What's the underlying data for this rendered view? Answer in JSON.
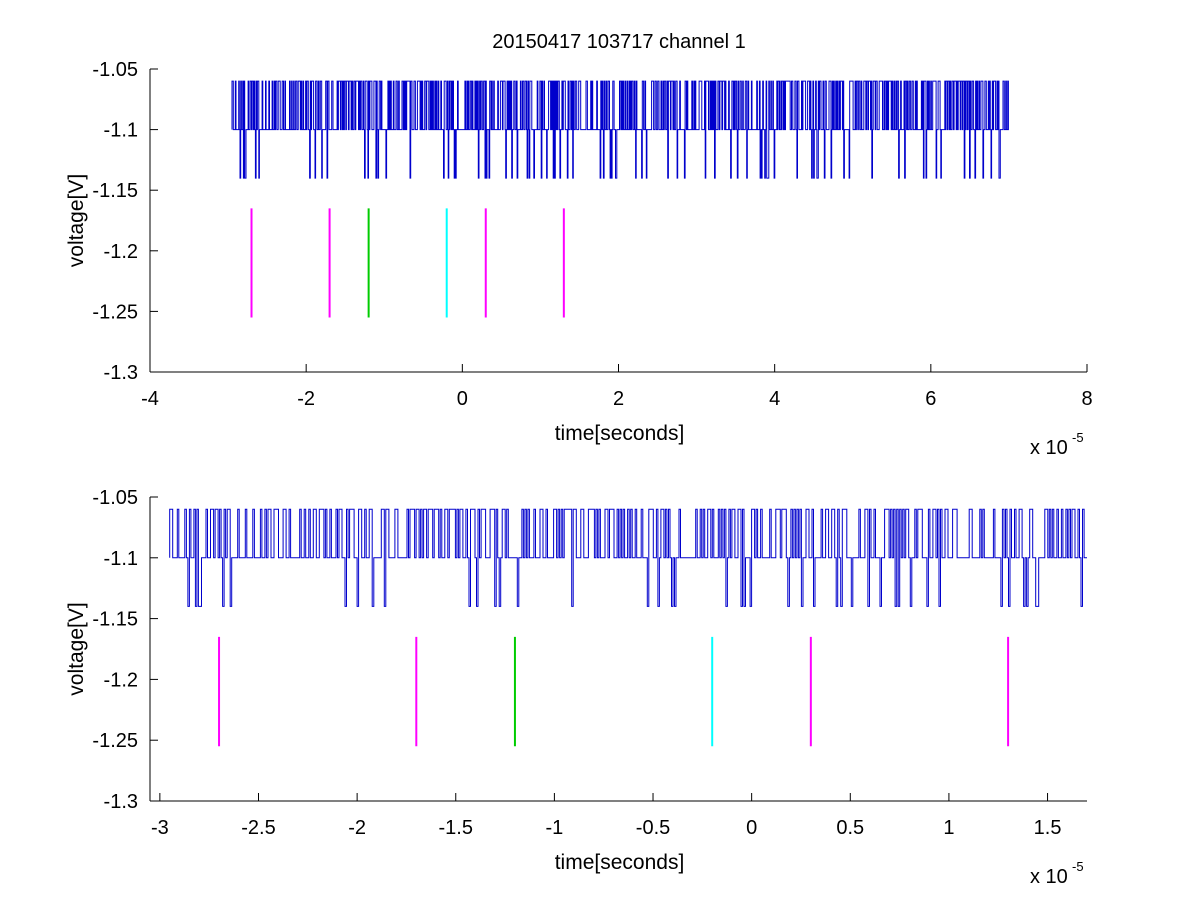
{
  "figure": {
    "title": "20150417 103717 channel 1"
  },
  "chart_data": [
    {
      "type": "line",
      "title": "20150417 103717 channel 1",
      "xlabel": "time[seconds]",
      "ylabel": "voltage[V]",
      "x_multiplier_base": "x 10",
      "x_multiplier_exp": "-5",
      "xlim": [
        -4,
        8
      ],
      "ylim": [
        -1.3,
        -1.05
      ],
      "xticks": [
        -4,
        -2,
        0,
        2,
        4,
        6,
        8
      ],
      "xtick_labels": [
        "-4",
        "-2",
        "0",
        "2",
        "4",
        "6",
        "8"
      ],
      "yticks": [
        -1.3,
        -1.25,
        -1.2,
        -1.15,
        -1.1,
        -1.05
      ],
      "ytick_labels": [
        "-1.3",
        "-1.25",
        "-1.2",
        "-1.15",
        "-1.1",
        "-1.05"
      ],
      "grid": false,
      "signal": {
        "color": "#0000cc",
        "x_range": [
          -2.95,
          7.0
        ],
        "levels": [
          -1.06,
          -1.1,
          -1.14
        ],
        "baseline": -1.1
      },
      "markers": [
        {
          "x": -2.7,
          "y_range": [
            -1.255,
            -1.165
          ],
          "color": "#ff00ff"
        },
        {
          "x": -1.7,
          "y_range": [
            -1.255,
            -1.165
          ],
          "color": "#ff00ff"
        },
        {
          "x": -1.2,
          "y_range": [
            -1.255,
            -1.165
          ],
          "color": "#00cc00"
        },
        {
          "x": -0.2,
          "y_range": [
            -1.255,
            -1.165
          ],
          "color": "#00ffff"
        },
        {
          "x": 0.3,
          "y_range": [
            -1.255,
            -1.165
          ],
          "color": "#ff00ff"
        },
        {
          "x": 1.3,
          "y_range": [
            -1.255,
            -1.165
          ],
          "color": "#ff00ff"
        }
      ]
    },
    {
      "type": "line",
      "title": "",
      "xlabel": "time[seconds]",
      "ylabel": "voltage[V]",
      "x_multiplier_base": "x 10",
      "x_multiplier_exp": "-5",
      "xlim": [
        -3.05,
        1.7
      ],
      "ylim": [
        -1.3,
        -1.05
      ],
      "xticks": [
        -3,
        -2.5,
        -2,
        -1.5,
        -1,
        -0.5,
        0,
        0.5,
        1,
        1.5
      ],
      "xtick_labels": [
        "-3",
        "-2.5",
        "-2",
        "-1.5",
        "-1",
        "-0.5",
        "0",
        "0.5",
        "1",
        "1.5"
      ],
      "yticks": [
        -1.3,
        -1.25,
        -1.2,
        -1.15,
        -1.1,
        -1.05
      ],
      "ytick_labels": [
        "-1.3",
        "-1.25",
        "-1.2",
        "-1.15",
        "-1.1",
        "-1.05"
      ],
      "grid": false,
      "signal": {
        "color": "#0000cc",
        "x_range": [
          -2.95,
          1.7
        ],
        "levels": [
          -1.06,
          -1.1,
          -1.14
        ],
        "baseline": -1.1
      },
      "markers": [
        {
          "x": -2.7,
          "y_range": [
            -1.255,
            -1.165
          ],
          "color": "#ff00ff"
        },
        {
          "x": -1.7,
          "y_range": [
            -1.255,
            -1.165
          ],
          "color": "#ff00ff"
        },
        {
          "x": -1.2,
          "y_range": [
            -1.255,
            -1.165
          ],
          "color": "#00cc00"
        },
        {
          "x": -0.2,
          "y_range": [
            -1.255,
            -1.165
          ],
          "color": "#00ffff"
        },
        {
          "x": 0.3,
          "y_range": [
            -1.255,
            -1.165
          ],
          "color": "#ff00ff"
        },
        {
          "x": 1.3,
          "y_range": [
            -1.255,
            -1.165
          ],
          "color": "#ff00ff"
        }
      ]
    }
  ]
}
